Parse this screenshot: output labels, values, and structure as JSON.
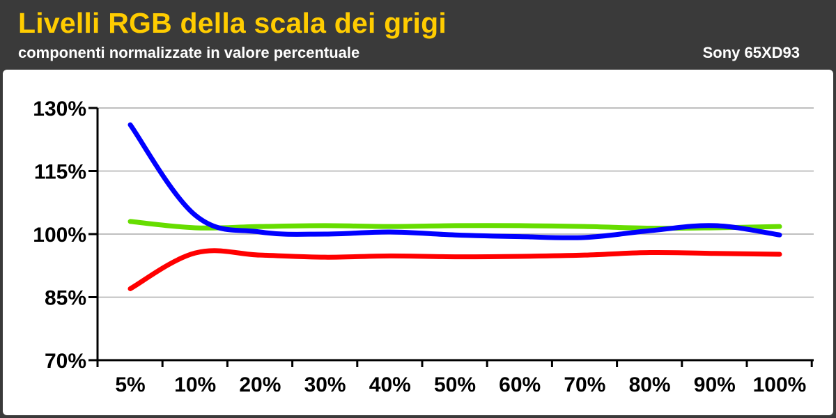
{
  "header": {
    "title": "Livelli RGB della scala dei grigi",
    "subtitle": "componenti normalizzate in valore percentuale",
    "device": "Sony 65XD93"
  },
  "colors": {
    "background": "#3a3a3a",
    "title": "#ffcc00",
    "red": "#ff0000",
    "green": "#66dd00",
    "blue": "#0000ff",
    "grid": "#aaaaaa"
  },
  "chart_data": {
    "type": "line",
    "categories": [
      "5%",
      "10%",
      "20%",
      "30%",
      "40%",
      "50%",
      "60%",
      "70%",
      "80%",
      "90%",
      "100%"
    ],
    "y_tick_labels": [
      "70%",
      "85%",
      "100%",
      "115%",
      "130%"
    ],
    "ylim": [
      70,
      130
    ],
    "grid": true,
    "series": [
      {
        "color": "red",
        "values": [
          87.0,
          95.5,
          95.0,
          94.5,
          94.8,
          94.6,
          94.7,
          95.0,
          95.6,
          95.4,
          95.2
        ]
      },
      {
        "color": "green",
        "values": [
          103.0,
          101.5,
          101.8,
          102.0,
          101.8,
          102.0,
          102.0,
          101.8,
          101.4,
          101.5,
          101.8
        ]
      },
      {
        "color": "blue",
        "values": [
          126.0,
          104.5,
          100.5,
          100.0,
          100.5,
          99.8,
          99.4,
          99.2,
          100.8,
          102.0,
          99.8
        ]
      }
    ]
  }
}
